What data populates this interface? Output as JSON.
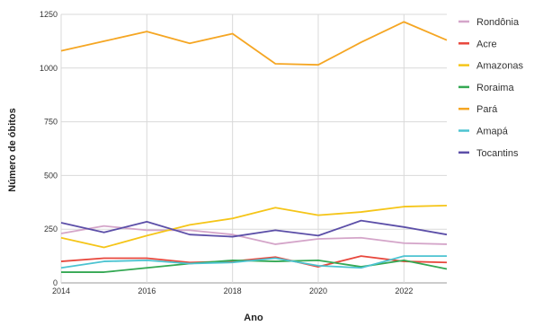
{
  "chart_data": {
    "type": "line",
    "xlabel": "Ano",
    "ylabel": "Número de óbitos",
    "x": [
      2014,
      2015,
      2016,
      2017,
      2018,
      2019,
      2020,
      2021,
      2022,
      2023
    ],
    "xlim": [
      2014,
      2023
    ],
    "ylim": [
      0,
      1250
    ],
    "x_ticks": [
      "2014",
      "2016",
      "2018",
      "2020",
      "2022"
    ],
    "y_ticks": [
      "0",
      "250",
      "500",
      "750",
      "1000",
      "1250"
    ],
    "grid": true,
    "legend_position": "right",
    "series": [
      {
        "name": "Rondônia",
        "color": "#d4a5c9",
        "values": [
          230,
          265,
          245,
          245,
          225,
          180,
          205,
          210,
          185,
          180
        ]
      },
      {
        "name": "Acre",
        "color": "#e8473c",
        "values": [
          100,
          115,
          115,
          95,
          100,
          120,
          75,
          125,
          100,
          95
        ]
      },
      {
        "name": "Amazonas",
        "color": "#f5c518",
        "values": [
          210,
          165,
          220,
          270,
          300,
          350,
          315,
          330,
          355,
          360
        ]
      },
      {
        "name": "Roraima",
        "color": "#34a853",
        "values": [
          50,
          50,
          70,
          90,
          105,
          100,
          105,
          75,
          105,
          65
        ]
      },
      {
        "name": "Pará",
        "color": "#f5a623",
        "values": [
          1080,
          1125,
          1170,
          1115,
          1160,
          1020,
          1015,
          1120,
          1215,
          1130
        ]
      },
      {
        "name": "Amapá",
        "color": "#4cc3d1",
        "values": [
          70,
          100,
          105,
          90,
          95,
          115,
          80,
          70,
          125,
          125
        ]
      },
      {
        "name": "Tocantins",
        "color": "#5c4fa8",
        "values": [
          280,
          235,
          285,
          225,
          215,
          245,
          220,
          290,
          260,
          225
        ]
      }
    ]
  }
}
